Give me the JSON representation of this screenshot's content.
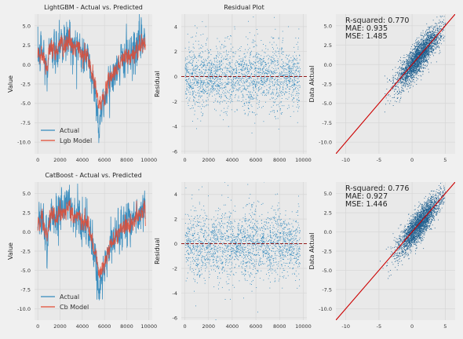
{
  "colors": {
    "actual": "#348abd",
    "predicted": "#e24a33",
    "reference": "#cc0000",
    "zero_line": "#8b0000",
    "grid": "#d6d6d6",
    "axes_bg": "#e9e9e9"
  },
  "chart_data": [
    {
      "id": "lgb_timeseries",
      "type": "line",
      "title": "LightGBM - Actual vs. Predicted",
      "xlabel": "",
      "ylabel": "Value",
      "xlim": [
        -300,
        10300
      ],
      "ylim": [
        -11.5,
        6.5
      ],
      "xticks": [
        0,
        2000,
        4000,
        6000,
        8000,
        10000
      ],
      "yticks": [
        -10.0,
        -7.5,
        -5.0,
        -2.5,
        0.0,
        2.5,
        5.0
      ],
      "xtick_labels": [
        "0",
        "2000",
        "4000",
        "6000",
        "8000",
        "10000"
      ],
      "ytick_labels": [
        "-10.0",
        "-7.5",
        "-5.0",
        "-2.5",
        "0.0",
        "2.5",
        "5.0"
      ],
      "legend": {
        "position": "lower-left",
        "entries": [
          "Actual",
          "Lgb Model"
        ]
      },
      "series": [
        {
          "name": "Actual",
          "x": [
            0,
            400,
            800,
            1200,
            1600,
            2000,
            2400,
            2800,
            3200,
            3600,
            4000,
            4400,
            4800,
            5200,
            5500,
            5700,
            6000,
            6400,
            6800,
            7200,
            7600,
            8000,
            8400,
            8800,
            9200,
            9600
          ],
          "y": [
            1.0,
            2.0,
            -1.0,
            2.8,
            1.5,
            3.2,
            2.5,
            3.8,
            1.8,
            2.6,
            0.8,
            1.5,
            -1.2,
            -3.5,
            -8.5,
            -6.0,
            -4.8,
            -2.0,
            -1.5,
            -0.5,
            0.5,
            1.2,
            0.8,
            2.0,
            3.0,
            3.3
          ],
          "amp": [
            2.0,
            1.8,
            1.9,
            1.8,
            2.0,
            2.2,
            2.0,
            1.8,
            2.0,
            2.0,
            1.8,
            1.8,
            1.8,
            1.6,
            1.7,
            1.6,
            1.6,
            1.5,
            1.5,
            1.8,
            1.8,
            2.0,
            2.0,
            2.0,
            1.8,
            1.7
          ]
        },
        {
          "name": "Lgb Model",
          "x": [
            0,
            400,
            800,
            1200,
            1600,
            2000,
            2400,
            2800,
            3200,
            3600,
            4000,
            4400,
            4800,
            5200,
            5500,
            5700,
            6000,
            6400,
            6800,
            7200,
            7600,
            8000,
            8400,
            8800,
            9200,
            9600
          ],
          "y": [
            1.0,
            1.8,
            -0.5,
            2.5,
            1.6,
            2.8,
            2.4,
            3.3,
            2.0,
            2.4,
            1.0,
            1.4,
            -0.8,
            -3.0,
            -5.0,
            -4.8,
            -4.2,
            -1.8,
            -1.2,
            -0.3,
            0.6,
            1.1,
            0.9,
            1.8,
            2.6,
            2.9
          ],
          "amp": [
            0.9,
            0.8,
            0.8,
            0.9,
            0.8,
            0.9,
            0.8,
            0.8,
            0.8,
            0.8,
            0.8,
            0.8,
            0.7,
            0.7,
            0.7,
            0.7,
            0.7,
            0.7,
            0.7,
            0.8,
            0.8,
            0.9,
            0.9,
            0.9,
            0.8,
            0.8
          ]
        }
      ]
    },
    {
      "id": "lgb_residual",
      "type": "scatter",
      "title": "Residual Plot",
      "xlabel": "",
      "ylabel": "Residual",
      "xlim": [
        -300,
        10300
      ],
      "ylim": [
        -6.2,
        5.0
      ],
      "xticks": [
        0,
        2000,
        4000,
        6000,
        8000,
        10000
      ],
      "yticks": [
        -6,
        -4,
        -2,
        0,
        2,
        4
      ],
      "xtick_labels": [
        "0",
        "2000",
        "4000",
        "6000",
        "8000",
        "10000"
      ],
      "ytick_labels": [
        "-6",
        "-4",
        "-2",
        "0",
        "2",
        "4"
      ],
      "zero_line": 0,
      "n_points": 2200,
      "residual_sd": 1.2,
      "x_range": [
        0,
        9700
      ]
    },
    {
      "id": "lgb_scatter",
      "type": "scatter",
      "title": "",
      "xlabel": "",
      "ylabel": "Data Aktual",
      "xlim": [
        -11.5,
        6.5
      ],
      "ylim": [
        -11.5,
        6.5
      ],
      "xticks": [
        -10,
        -5,
        0,
        5
      ],
      "yticks": [
        -10.0,
        -7.5,
        -5.0,
        -2.5,
        0.0,
        2.5,
        5.0
      ],
      "xtick_labels": [
        "-10",
        "-5",
        "0",
        "5"
      ],
      "ytick_labels": [
        "-10.0",
        "-7.5",
        "-5.0",
        "-2.5",
        "0.0",
        "2.5",
        "5.0"
      ],
      "reference_line": [
        [
          -11.5,
          -11.5
        ],
        [
          6.5,
          6.5
        ]
      ],
      "stats": [
        "R-squared: 0.770",
        "MAE: 0.935",
        "MSE: 1.485"
      ],
      "n_points": 2600,
      "x_range": [
        -6,
        5
      ]
    },
    {
      "id": "cb_timeseries",
      "type": "line",
      "title": "CatBoost - Actual vs. Predicted",
      "xlabel": "",
      "ylabel": "Value",
      "xlim": [
        -300,
        10300
      ],
      "ylim": [
        -11.5,
        6.5
      ],
      "xticks": [
        0,
        2000,
        4000,
        6000,
        8000,
        10000
      ],
      "yticks": [
        -10.0,
        -7.5,
        -5.0,
        -2.5,
        0.0,
        2.5,
        5.0
      ],
      "xtick_labels": [
        "0",
        "2000",
        "4000",
        "6000",
        "8000",
        "10000"
      ],
      "ytick_labels": [
        "-10.0",
        "-7.5",
        "-5.0",
        "-2.5",
        "0.0",
        "2.5",
        "5.0"
      ],
      "legend": {
        "position": "lower-left",
        "entries": [
          "Actual",
          "Cb Model"
        ]
      },
      "series": [
        {
          "name": "Actual",
          "x": [
            0,
            400,
            800,
            1200,
            1600,
            2000,
            2400,
            2800,
            3200,
            3600,
            4000,
            4400,
            4800,
            5200,
            5500,
            5700,
            6000,
            6400,
            6800,
            7200,
            7600,
            8000,
            8400,
            8800,
            9200,
            9600
          ],
          "y": [
            1.0,
            2.0,
            -1.0,
            2.8,
            1.5,
            3.2,
            2.5,
            3.8,
            1.8,
            2.6,
            0.8,
            1.5,
            -1.2,
            -3.5,
            -8.5,
            -6.0,
            -4.8,
            -2.0,
            -1.5,
            -0.5,
            0.5,
            1.2,
            0.8,
            2.0,
            3.0,
            3.3
          ],
          "amp": [
            2.0,
            1.8,
            1.9,
            1.8,
            2.0,
            2.2,
            2.0,
            1.8,
            2.0,
            2.0,
            1.8,
            1.8,
            1.8,
            1.6,
            1.7,
            1.6,
            1.6,
            1.5,
            1.5,
            1.8,
            1.8,
            2.0,
            2.0,
            2.0,
            1.8,
            1.7
          ]
        },
        {
          "name": "Cb Model",
          "x": [
            0,
            400,
            800,
            1200,
            1600,
            2000,
            2400,
            2800,
            3200,
            3600,
            4000,
            4400,
            4800,
            5200,
            5500,
            5700,
            6000,
            6400,
            6800,
            7200,
            7600,
            8000,
            8400,
            8800,
            9200,
            9600
          ],
          "y": [
            1.0,
            1.8,
            -0.5,
            2.5,
            1.6,
            2.8,
            2.4,
            3.3,
            2.0,
            2.4,
            1.0,
            1.4,
            -0.8,
            -3.0,
            -5.2,
            -4.9,
            -4.3,
            -1.8,
            -1.2,
            -0.3,
            0.6,
            1.1,
            0.9,
            1.8,
            2.6,
            2.9
          ],
          "amp": [
            0.9,
            0.8,
            0.8,
            0.9,
            0.8,
            0.9,
            0.8,
            0.8,
            0.8,
            0.8,
            0.8,
            0.8,
            0.7,
            0.7,
            0.7,
            0.7,
            0.7,
            0.7,
            0.7,
            0.8,
            0.8,
            0.9,
            0.9,
            0.9,
            0.8,
            0.8
          ]
        }
      ]
    },
    {
      "id": "cb_residual",
      "type": "scatter",
      "title": "",
      "xlabel": "",
      "ylabel": "Residual",
      "xlim": [
        -300,
        10300
      ],
      "ylim": [
        -6.2,
        5.0
      ],
      "xticks": [
        0,
        2000,
        4000,
        6000,
        8000,
        10000
      ],
      "yticks": [
        -6,
        -4,
        -2,
        0,
        2,
        4
      ],
      "xtick_labels": [
        "0",
        "2000",
        "4000",
        "6000",
        "8000",
        "10000"
      ],
      "ytick_labels": [
        "-6",
        "-4",
        "-2",
        "0",
        "2",
        "4"
      ],
      "zero_line": 0,
      "n_points": 2200,
      "residual_sd": 1.2,
      "x_range": [
        0,
        9700
      ]
    },
    {
      "id": "cb_scatter",
      "type": "scatter",
      "title": "",
      "xlabel": "",
      "ylabel": "Data Aktual",
      "xlim": [
        -11.5,
        6.5
      ],
      "ylim": [
        -11.5,
        6.5
      ],
      "xticks": [
        -10,
        -5,
        0,
        5
      ],
      "yticks": [
        -10.0,
        -7.5,
        -5.0,
        -2.5,
        0.0,
        2.5,
        5.0
      ],
      "xtick_labels": [
        "-10",
        "-5",
        "0",
        "5"
      ],
      "ytick_labels": [
        "-10.0",
        "-7.5",
        "-5.0",
        "-2.5",
        "0.0",
        "2.5",
        "5.0"
      ],
      "reference_line": [
        [
          -11.5,
          -11.5
        ],
        [
          6.5,
          6.5
        ]
      ],
      "stats": [
        "R-squared: 0.776",
        "MAE: 0.927",
        "MSE: 1.446"
      ],
      "n_points": 2600,
      "x_range": [
        -6,
        5
      ]
    }
  ]
}
